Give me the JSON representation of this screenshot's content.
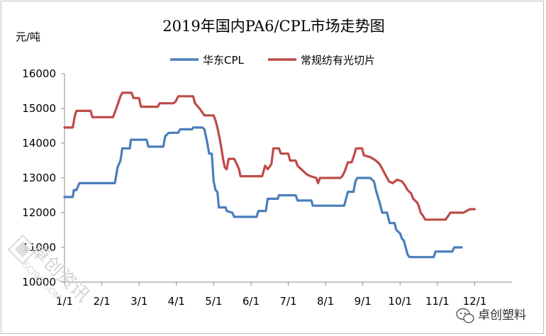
{
  "chart_data": {
    "type": "line",
    "title": "2019年国内PA6/CPL市场走势图",
    "ylabel": "元/吨",
    "ylim": [
      10000,
      16000
    ],
    "yticks": [
      "10000",
      "11000",
      "12000",
      "13000",
      "14000",
      "15000",
      "16000"
    ],
    "xlim": [
      0,
      12
    ],
    "xticks": [
      "1/1",
      "2/1",
      "3/1",
      "4/1",
      "5/1",
      "6/1",
      "7/1",
      "8/1",
      "9/1",
      "10/1",
      "11/1",
      "12/1"
    ],
    "legend_position": "top-center",
    "grid": false,
    "series": [
      {
        "name": "华东CPL",
        "color": "#4a7ebb",
        "points": [
          [
            0.0,
            12450
          ],
          [
            0.22,
            12450
          ],
          [
            0.25,
            12650
          ],
          [
            0.32,
            12650
          ],
          [
            0.4,
            12850
          ],
          [
            1.2,
            12850
          ],
          [
            1.35,
            12850
          ],
          [
            1.42,
            13300
          ],
          [
            1.5,
            13500
          ],
          [
            1.55,
            13850
          ],
          [
            1.75,
            13850
          ],
          [
            1.78,
            14100
          ],
          [
            2.2,
            14100
          ],
          [
            2.25,
            13900
          ],
          [
            2.65,
            13900
          ],
          [
            2.7,
            14200
          ],
          [
            2.8,
            14300
          ],
          [
            3.05,
            14300
          ],
          [
            3.1,
            14400
          ],
          [
            3.42,
            14400
          ],
          [
            3.45,
            14450
          ],
          [
            3.7,
            14450
          ],
          [
            3.75,
            14400
          ],
          [
            3.82,
            14050
          ],
          [
            3.88,
            13700
          ],
          [
            3.95,
            13700
          ],
          [
            4.0,
            12900
          ],
          [
            4.05,
            12650
          ],
          [
            4.1,
            12600
          ],
          [
            4.14,
            12150
          ],
          [
            4.32,
            12150
          ],
          [
            4.35,
            12050
          ],
          [
            4.5,
            12000
          ],
          [
            4.55,
            11880
          ],
          [
            5.15,
            11880
          ],
          [
            5.2,
            12050
          ],
          [
            5.4,
            12050
          ],
          [
            5.45,
            12400
          ],
          [
            5.72,
            12400
          ],
          [
            5.75,
            12500
          ],
          [
            6.2,
            12500
          ],
          [
            6.25,
            12350
          ],
          [
            6.62,
            12350
          ],
          [
            6.66,
            12200
          ],
          [
            7.5,
            12200
          ],
          [
            7.55,
            12400
          ],
          [
            7.6,
            12600
          ],
          [
            7.75,
            12600
          ],
          [
            7.8,
            12900
          ],
          [
            7.85,
            13000
          ],
          [
            8.2,
            13000
          ],
          [
            8.3,
            12900
          ],
          [
            8.35,
            12650
          ],
          [
            8.45,
            12300
          ],
          [
            8.52,
            12000
          ],
          [
            8.65,
            12000
          ],
          [
            8.72,
            11700
          ],
          [
            8.85,
            11700
          ],
          [
            8.9,
            11500
          ],
          [
            9.0,
            11400
          ],
          [
            9.05,
            11250
          ],
          [
            9.1,
            11200
          ],
          [
            9.15,
            11000
          ],
          [
            9.2,
            10800
          ],
          [
            9.25,
            10720
          ],
          [
            9.9,
            10720
          ],
          [
            9.95,
            10880
          ],
          [
            10.4,
            10880
          ],
          [
            10.45,
            11000
          ],
          [
            10.65,
            11000
          ]
        ]
      },
      {
        "name": "常规纺有光切片",
        "color": "#be4b48",
        "points": [
          [
            0.0,
            14450
          ],
          [
            0.22,
            14450
          ],
          [
            0.28,
            14800
          ],
          [
            0.32,
            14930
          ],
          [
            0.7,
            14930
          ],
          [
            0.75,
            14750
          ],
          [
            1.3,
            14750
          ],
          [
            1.38,
            14980
          ],
          [
            1.42,
            15100
          ],
          [
            1.5,
            15350
          ],
          [
            1.55,
            15450
          ],
          [
            1.8,
            15450
          ],
          [
            1.85,
            15300
          ],
          [
            2.0,
            15300
          ],
          [
            2.05,
            15050
          ],
          [
            2.5,
            15050
          ],
          [
            2.55,
            15150
          ],
          [
            2.92,
            15150
          ],
          [
            2.98,
            15200
          ],
          [
            3.05,
            15350
          ],
          [
            3.45,
            15350
          ],
          [
            3.5,
            15150
          ],
          [
            3.62,
            15000
          ],
          [
            3.75,
            14800
          ],
          [
            4.0,
            14800
          ],
          [
            4.05,
            14650
          ],
          [
            4.1,
            14450
          ],
          [
            4.15,
            14200
          ],
          [
            4.2,
            13900
          ],
          [
            4.25,
            13550
          ],
          [
            4.3,
            13300
          ],
          [
            4.35,
            13250
          ],
          [
            4.4,
            13550
          ],
          [
            4.55,
            13550
          ],
          [
            4.62,
            13400
          ],
          [
            4.68,
            13250
          ],
          [
            4.72,
            13050
          ],
          [
            5.3,
            13050
          ],
          [
            5.38,
            13350
          ],
          [
            5.45,
            13250
          ],
          [
            5.55,
            13400
          ],
          [
            5.6,
            13850
          ],
          [
            5.75,
            13850
          ],
          [
            5.8,
            13700
          ],
          [
            6.0,
            13700
          ],
          [
            6.05,
            13500
          ],
          [
            6.2,
            13500
          ],
          [
            6.25,
            13350
          ],
          [
            6.35,
            13250
          ],
          [
            6.5,
            13100
          ],
          [
            6.6,
            13050
          ],
          [
            6.75,
            13000
          ],
          [
            6.8,
            12850
          ],
          [
            6.85,
            13000
          ],
          [
            7.4,
            13000
          ],
          [
            7.45,
            13050
          ],
          [
            7.52,
            13200
          ],
          [
            7.6,
            13450
          ],
          [
            7.7,
            13450
          ],
          [
            7.75,
            13600
          ],
          [
            7.82,
            13850
          ],
          [
            7.98,
            13850
          ],
          [
            8.03,
            13650
          ],
          [
            8.2,
            13600
          ],
          [
            8.35,
            13500
          ],
          [
            8.45,
            13400
          ],
          [
            8.5,
            13300
          ],
          [
            8.6,
            13100
          ],
          [
            8.7,
            12900
          ],
          [
            8.8,
            12850
          ],
          [
            8.92,
            12950
          ],
          [
            9.05,
            12900
          ],
          [
            9.12,
            12800
          ],
          [
            9.2,
            12650
          ],
          [
            9.3,
            12550
          ],
          [
            9.35,
            12400
          ],
          [
            9.45,
            12300
          ],
          [
            9.5,
            12200
          ],
          [
            9.55,
            12000
          ],
          [
            9.62,
            11900
          ],
          [
            9.67,
            11800
          ],
          [
            10.22,
            11800
          ],
          [
            10.35,
            12000
          ],
          [
            10.7,
            12000
          ],
          [
            10.78,
            12050
          ],
          [
            10.88,
            12100
          ],
          [
            11.0,
            12100
          ]
        ]
      }
    ]
  },
  "watermark": {
    "name": "卓创资讯",
    "site": "SCI99.COM"
  },
  "logo": {
    "text": "卓创塑料",
    "icon": "wechat-icon"
  }
}
